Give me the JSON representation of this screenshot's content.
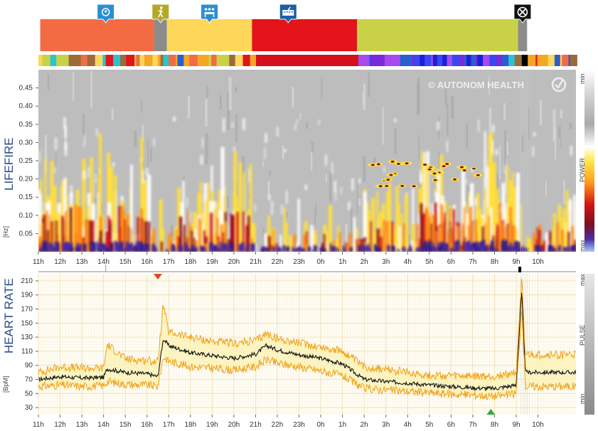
{
  "chart_data": [
    {
      "type": "heatmap",
      "title": "LIFEFIRE",
      "ylabel": "[Hz]",
      "yticks": [
        "0.05",
        "0.10",
        "0.15",
        "0.20",
        "0.25",
        "0.30",
        "0.35",
        "0.40",
        "0.45"
      ],
      "ylim": [
        0,
        0.5
      ],
      "xticks": [
        "12h",
        "13h",
        "14h",
        "15h",
        "16h",
        "17h",
        "18h",
        "19h",
        "20h",
        "21h",
        "22h",
        "23h",
        "0h",
        "1h",
        "2h",
        "3h",
        "4h",
        "5h",
        "6h",
        "7h",
        "8h",
        "9h",
        "10h",
        "11h"
      ],
      "colorbar": {
        "label": "POWER",
        "min_label": "min",
        "max_label": "max"
      },
      "watermark": "© AUTONOM HEALTH",
      "activity_segments": [
        {
          "start": "11:05",
          "end": "16:20",
          "color": "#f26b43",
          "icon": "brain-icon"
        },
        {
          "start": "16:20",
          "end": "16:55",
          "color": "#8c8c8c",
          "icon": "walking-icon"
        },
        {
          "start": "16:55",
          "end": "20:50",
          "color": "#fdd65a",
          "icon": "meeting-icon"
        },
        {
          "start": "20:50",
          "end": "01:40",
          "color": "#e3151b",
          "icon": "meeting-icon"
        },
        {
          "start": "01:40",
          "end": "09:05",
          "color": "#c9d247",
          "icon": "bed-icon"
        },
        {
          "start": "09:05",
          "end": "09:30",
          "color": "#8c8c8c",
          "icon": "no-measurement-icon"
        },
        {
          "start": "09:30",
          "end": "11:30",
          "color": "#f26b43",
          "icon": "keyboard-icon"
        }
      ]
    },
    {
      "type": "line",
      "title": "HEART RATE",
      "ylabel": "[BpM]",
      "yticks": [
        "30",
        "50",
        "70",
        "90",
        "110",
        "130",
        "150",
        "170",
        "190",
        "210"
      ],
      "ylim": [
        20,
        220
      ],
      "xticks": [
        "12h",
        "13h",
        "14h",
        "15h",
        "16h",
        "17h",
        "18h",
        "19h",
        "20h",
        "21h",
        "22h",
        "23h",
        "0h",
        "1h",
        "2h",
        "3h",
        "4h",
        "5h",
        "6h",
        "7h",
        "8h",
        "9h",
        "10h",
        "11h"
      ],
      "side_labels": {
        "top": "max",
        "middle": "PULSE",
        "bottom": "min"
      },
      "markers": [
        {
          "time": "16:30",
          "kind": "max-marker",
          "color": "#e2452a"
        },
        {
          "time": "07:50",
          "kind": "min-marker",
          "color": "#3aa64a"
        }
      ],
      "x": [
        "11:00",
        "12:00",
        "13:00",
        "14:00",
        "14:10",
        "15:00",
        "16:00",
        "16:30",
        "16:45",
        "17:00",
        "18:00",
        "19:00",
        "20:00",
        "21:00",
        "21:30",
        "22:00",
        "23:00",
        "00:00",
        "01:00",
        "02:00",
        "03:00",
        "04:00",
        "05:00",
        "06:00",
        "07:00",
        "08:00",
        "09:00",
        "09:15",
        "09:25",
        "10:00",
        "11:00",
        "11:45"
      ],
      "series": [
        {
          "name": "",
          "values": [
            70,
            74,
            72,
            73,
            85,
            80,
            78,
            74,
            128,
            118,
            108,
            104,
            100,
            106,
            118,
            112,
            105,
            100,
            92,
            70,
            67,
            65,
            62,
            60,
            58,
            57,
            62,
            195,
            85,
            68,
            72,
            80
          ]
        },
        {
          "name": "",
          "values": [
            80,
            88,
            86,
            86,
            120,
            99,
            97,
            95,
            176,
            137,
            130,
            124,
            121,
            125,
            135,
            128,
            122,
            116,
            110,
            88,
            84,
            80,
            76,
            75,
            74,
            74,
            80,
            215,
            104,
            85,
            88,
            105
          ]
        },
        {
          "name": "",
          "values": [
            60,
            62,
            60,
            61,
            67,
            63,
            62,
            60,
            102,
            96,
            88,
            86,
            83,
            88,
            98,
            93,
            88,
            82,
            75,
            57,
            55,
            53,
            51,
            49,
            48,
            46,
            50,
            170,
            68,
            55,
            58,
            60
          ]
        }
      ]
    }
  ]
}
